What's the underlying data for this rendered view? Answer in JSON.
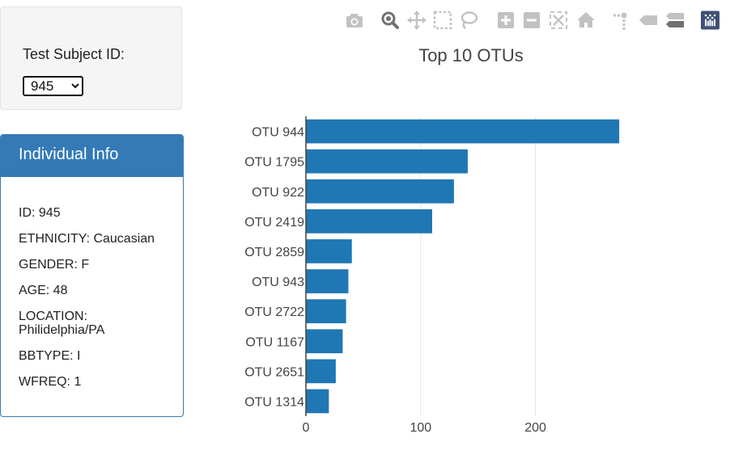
{
  "selector": {
    "label": "Test Subject ID:",
    "selected": "945",
    "options": [
      "945"
    ]
  },
  "info": {
    "title": "Individual Info",
    "rows": [
      "ID: 945",
      "ETHNICITY: Caucasian",
      "GENDER: F",
      "AGE: 48",
      "LOCATION: Philidelphia/PA",
      "BBTYPE: I",
      "WFREQ: 1"
    ]
  },
  "modebar": {
    "icons": [
      "camera-icon",
      "zoom-icon",
      "pan-icon",
      "box-select-icon",
      "lasso-icon",
      "zoom-in-icon",
      "zoom-out-icon",
      "autoscale-icon",
      "home-icon",
      "spike-lines-icon",
      "hover-closest-icon",
      "hover-compare-icon",
      "plotly-logo-icon"
    ],
    "icon_color": "#c2c2c2",
    "active_color": "#707070",
    "logo_color": "#3f4f75"
  },
  "chart_data": {
    "type": "bar",
    "orientation": "horizontal",
    "title": "Top 10 OTUs",
    "categories": [
      "OTU 944",
      "OTU 1795",
      "OTU 922",
      "OTU 2419",
      "OTU 2859",
      "OTU 943",
      "OTU 2722",
      "OTU 1167",
      "OTU 2651",
      "OTU 1314"
    ],
    "values": [
      273,
      141,
      129,
      110,
      40,
      37,
      35,
      32,
      26,
      20
    ],
    "xlim": [
      0,
      290
    ],
    "xticks": [
      0,
      100,
      200
    ],
    "grid": true,
    "bar_color": "#1f77b4"
  }
}
